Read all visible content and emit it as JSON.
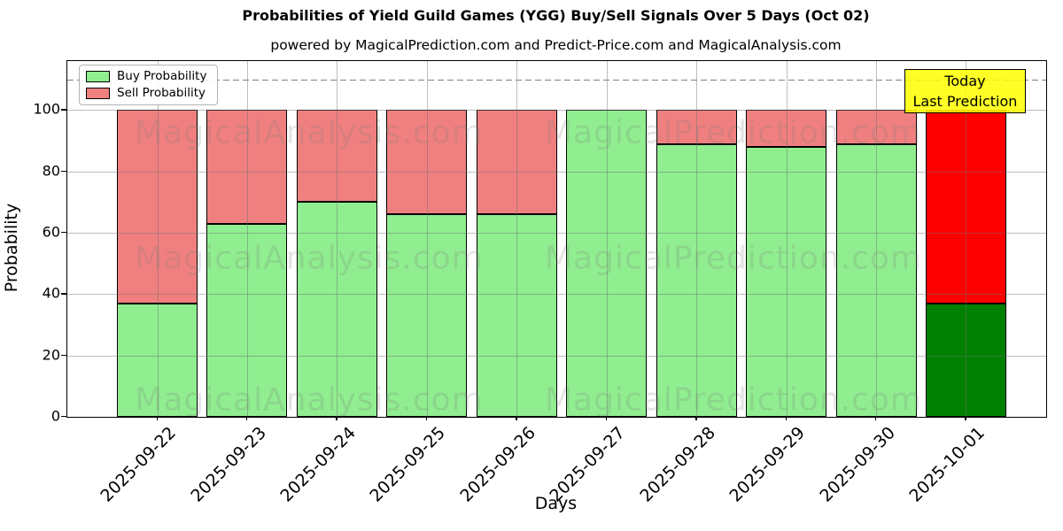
{
  "header": {
    "title": "Probabilities of Yield Guild Games (YGG) Buy/Sell Signals Over 5 Days (Oct 02)",
    "subtitle": "powered by MagicalPrediction.com and Predict-Price.com and MagicalAnalysis.com"
  },
  "legend": {
    "items": [
      {
        "label": "Buy Probability",
        "color": "#90EE90"
      },
      {
        "label": "Sell Probability",
        "color": "#F08080"
      }
    ]
  },
  "annotation": {
    "line1": "Today",
    "line2": "Last Prediction",
    "bg_color": "#FFFF00"
  },
  "watermarks": {
    "texts": [
      "MagicalAnalysis.com",
      "MagicalPrediction.com"
    ]
  },
  "chart_data": {
    "type": "bar",
    "stacked": true,
    "title": "Probabilities of Yield Guild Games (YGG) Buy/Sell Signals Over 5 Days (Oct 02)",
    "subtitle": "powered by MagicalPrediction.com and Predict-Price.com and MagicalAnalysis.com",
    "xlabel": "Days",
    "ylabel": "Probability",
    "categories": [
      "2025-09-22",
      "2025-09-23",
      "2025-09-24",
      "2025-09-25",
      "2025-09-26",
      "2025-09-27",
      "2025-09-28",
      "2025-09-29",
      "2025-09-30",
      "2025-10-01"
    ],
    "series": [
      {
        "name": "Buy Probability",
        "values": [
          37,
          63,
          70,
          66,
          66,
          100,
          89,
          88,
          89,
          37
        ],
        "color": "#90EE90",
        "last_bar_color": "#008000"
      },
      {
        "name": "Sell Probability",
        "values": [
          63,
          37,
          30,
          34,
          34,
          0,
          11,
          12,
          11,
          63
        ],
        "color": "#F08080",
        "last_bar_color": "#FF0000"
      }
    ],
    "yticks": [
      0,
      20,
      40,
      60,
      80,
      100
    ],
    "ylim": [
      0,
      116
    ],
    "threshold_line": {
      "y": 110,
      "style": "dashed",
      "color": "#808080"
    },
    "grid": true,
    "legend_position": "upper-left",
    "highlight_last_bar_label": "Today / Last Prediction"
  }
}
